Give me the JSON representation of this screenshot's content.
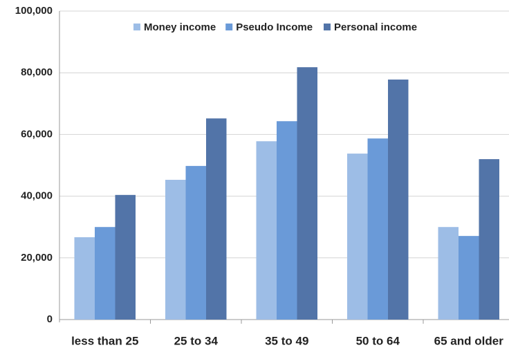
{
  "chart_data": {
    "type": "bar",
    "categories": [
      "less than 25",
      "25 to 34",
      "35 to 49",
      "50 to 64",
      "65 and older"
    ],
    "series": [
      {
        "name": "Money income",
        "color": "#9dbde6",
        "values": [
          26700,
          45300,
          57800,
          53800,
          30000
        ]
      },
      {
        "name": "Pseudo Income",
        "color": "#6a9ad8",
        "values": [
          30000,
          49800,
          64300,
          58700,
          27100
        ]
      },
      {
        "name": "Personal income",
        "color": "#5274a8",
        "values": [
          40400,
          65200,
          81800,
          77800,
          52000
        ]
      }
    ],
    "ylim": [
      0,
      100000
    ],
    "yticks": [
      0,
      {
        "value": 20000,
        "label": "20,000"
      },
      {
        "value": 40000,
        "label": "40,000"
      },
      {
        "value": 60000,
        "label": "60,000"
      },
      {
        "value": 80000,
        "label": "80,000"
      },
      {
        "value": 100000,
        "label": "100,000"
      }
    ],
    "grid": true,
    "legend": "top"
  }
}
